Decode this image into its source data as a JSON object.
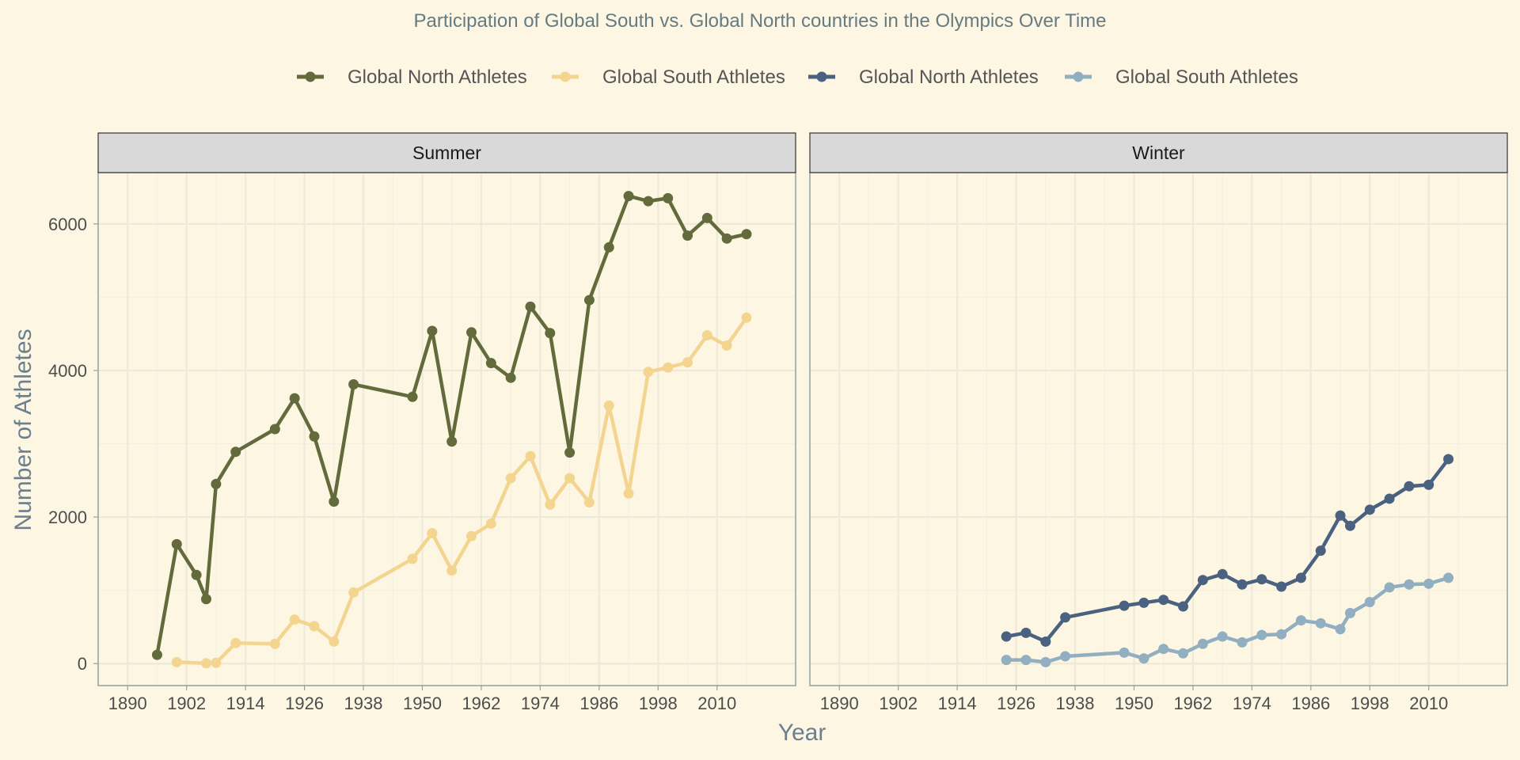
{
  "chart_data": {
    "type": "line",
    "title": "Participation of Global South vs. Global North countries in the Olympics Over Time",
    "xlabel": "Year",
    "ylabel": "Number of Athletes",
    "xlim": [
      1884,
      2026
    ],
    "ylim": [
      -300,
      6700
    ],
    "x_ticks": [
      1890,
      1902,
      1914,
      1926,
      1938,
      1950,
      1962,
      1974,
      1986,
      1998,
      2010
    ],
    "y_ticks": [
      0,
      2000,
      4000,
      6000
    ],
    "grid": true,
    "legend_position": "top",
    "legend": [
      {
        "label": "Global North Athletes",
        "color": "#636b3c"
      },
      {
        "label": "Global South Athletes",
        "color": "#f3d590"
      },
      {
        "label": "Global North Athletes",
        "color": "#4a6280"
      },
      {
        "label": "Global South Athletes",
        "color": "#92aec1"
      }
    ],
    "panels": [
      {
        "strip": "Summer",
        "series": [
          {
            "name": "Global North Athletes",
            "color": "#636b3c",
            "x": [
              1896,
              1900,
              1904,
              1906,
              1908,
              1912,
              1920,
              1924,
              1928,
              1932,
              1936,
              1948,
              1952,
              1956,
              1960,
              1964,
              1968,
              1972,
              1976,
              1980,
              1984,
              1988,
              1992,
              1996,
              2000,
              2004,
              2008,
              2012,
              2016
            ],
            "y": [
              120,
              1630,
              1210,
              880,
              2450,
              2890,
              3200,
              3620,
              3100,
              2210,
              3810,
              3640,
              4540,
              3030,
              4520,
              4100,
              3900,
              4870,
              4510,
              2880,
              4960,
              5680,
              6380,
              6310,
              6350,
              5840,
              6080,
              5800,
              5860
            ]
          },
          {
            "name": "Global South Athletes",
            "color": "#f3d590",
            "x": [
              1900,
              1906,
              1908,
              1912,
              1920,
              1924,
              1928,
              1932,
              1936,
              1948,
              1952,
              1956,
              1960,
              1964,
              1968,
              1972,
              1976,
              1980,
              1984,
              1988,
              1992,
              1996,
              2000,
              2004,
              2008,
              2012,
              2016
            ],
            "y": [
              20,
              5,
              10,
              280,
              270,
              600,
              510,
              300,
              970,
              1430,
              1780,
              1270,
              1740,
              1910,
              2530,
              2830,
              2170,
              2530,
              2200,
              3520,
              2320,
              3980,
              4040,
              4110,
              4480,
              4340,
              4720
            ]
          }
        ]
      },
      {
        "strip": "Winter",
        "series": [
          {
            "name": "Global North Athletes",
            "color": "#4a6280",
            "x": [
              1924,
              1928,
              1932,
              1936,
              1948,
              1952,
              1956,
              1960,
              1964,
              1968,
              1972,
              1976,
              1980,
              1984,
              1988,
              1992,
              1994,
              1998,
              2002,
              2006,
              2010,
              2014
            ],
            "y": [
              370,
              420,
              300,
              630,
              790,
              830,
              870,
              780,
              1140,
              1220,
              1080,
              1150,
              1050,
              1170,
              1540,
              2020,
              1880,
              2100,
              2250,
              2420,
              2440,
              2790
            ]
          },
          {
            "name": "Global South Athletes",
            "color": "#92aec1",
            "x": [
              1924,
              1928,
              1932,
              1936,
              1948,
              1952,
              1956,
              1960,
              1964,
              1968,
              1972,
              1976,
              1980,
              1984,
              1988,
              1992,
              1994,
              1998,
              2002,
              2006,
              2010,
              2014
            ],
            "y": [
              50,
              50,
              20,
              100,
              150,
              70,
              200,
              140,
              270,
              370,
              290,
              390,
              400,
              590,
              550,
              470,
              690,
              840,
              1040,
              1080,
              1090,
              1170
            ]
          }
        ]
      }
    ]
  }
}
